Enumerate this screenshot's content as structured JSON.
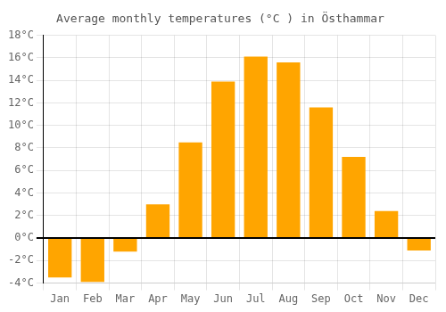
{
  "chart_data": {
    "type": "bar",
    "title": "Average monthly temperatures (°C ) in Östhammar",
    "categories": [
      "Jan",
      "Feb",
      "Mar",
      "Apr",
      "May",
      "Jun",
      "Jul",
      "Aug",
      "Sep",
      "Oct",
      "Nov",
      "Dec"
    ],
    "values": [
      -3.5,
      -3.9,
      -1.2,
      3.0,
      8.5,
      13.9,
      16.1,
      15.6,
      11.6,
      7.2,
      2.4,
      -1.1
    ],
    "color": "#FFA500",
    "ylim": [
      -4,
      18
    ],
    "yticks": [
      {
        "value": -4,
        "label": "-4°C"
      },
      {
        "value": -2,
        "label": "-2°C"
      },
      {
        "value": 0,
        "label": "0°C"
      },
      {
        "value": 2,
        "label": "2°C"
      },
      {
        "value": 4,
        "label": "4°C"
      },
      {
        "value": 6,
        "label": "6°C"
      },
      {
        "value": 8,
        "label": "8°C"
      },
      {
        "value": 10,
        "label": "10°C"
      },
      {
        "value": 12,
        "label": "12°C"
      },
      {
        "value": 14,
        "label": "14°C"
      },
      {
        "value": 16,
        "label": "16°C"
      },
      {
        "value": 18,
        "label": "18°C"
      }
    ],
    "grid": true
  }
}
